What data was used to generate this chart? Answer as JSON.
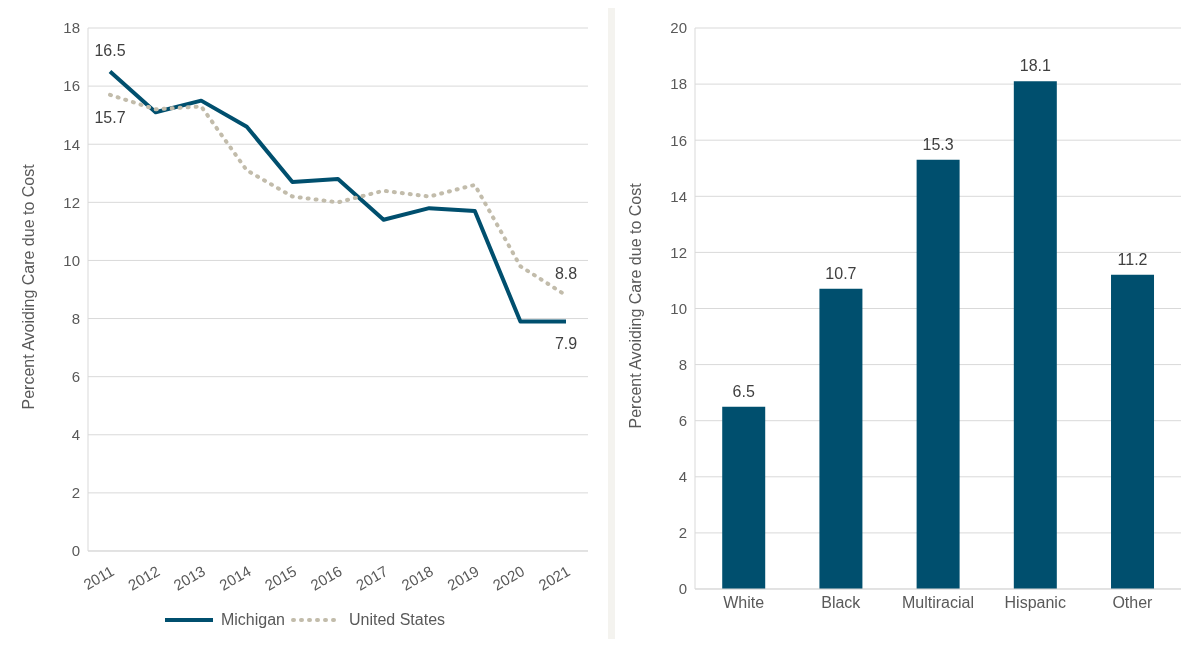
{
  "chart_data": [
    {
      "type": "line",
      "ylabel": "Percent Avoiding Care due to Cost",
      "categories": [
        "2011",
        "2012",
        "2013",
        "2014",
        "2015",
        "2016",
        "2017",
        "2018",
        "2019",
        "2020",
        "2021"
      ],
      "ylim": [
        0,
        18
      ],
      "yticks": [
        0,
        2,
        4,
        6,
        8,
        10,
        12,
        14,
        16,
        18
      ],
      "grid": "y",
      "legend": "bottom",
      "series": [
        {
          "name": "Michigan",
          "color": "#004f6e",
          "line_style": "solid",
          "values": [
            16.5,
            15.1,
            15.5,
            14.6,
            12.7,
            12.8,
            11.4,
            11.8,
            11.7,
            7.9,
            7.9
          ],
          "value_labels": [
            "16.5",
            null,
            null,
            null,
            null,
            null,
            null,
            null,
            null,
            null,
            "7.9"
          ]
        },
        {
          "name": "United States",
          "color": "#c2bcab",
          "line_style": "dotted",
          "values": [
            15.7,
            15.2,
            15.3,
            13.1,
            12.2,
            12.0,
            12.4,
            12.2,
            12.6,
            9.8,
            8.8
          ],
          "value_labels": [
            "15.7",
            null,
            null,
            null,
            null,
            null,
            null,
            null,
            null,
            null,
            "8.8"
          ]
        }
      ]
    },
    {
      "type": "bar",
      "ylabel": "Percent Avoiding Care due to Cost",
      "categories": [
        "White",
        "Black",
        "Multiracial",
        "Hispanic",
        "Other"
      ],
      "values": [
        6.5,
        10.7,
        15.3,
        18.1,
        11.2
      ],
      "color": "#004f6e",
      "ylim": [
        0,
        20
      ],
      "yticks": [
        0,
        2,
        4,
        6,
        8,
        10,
        12,
        14,
        16,
        18,
        20
      ],
      "grid": "y",
      "data_labels": true
    }
  ]
}
